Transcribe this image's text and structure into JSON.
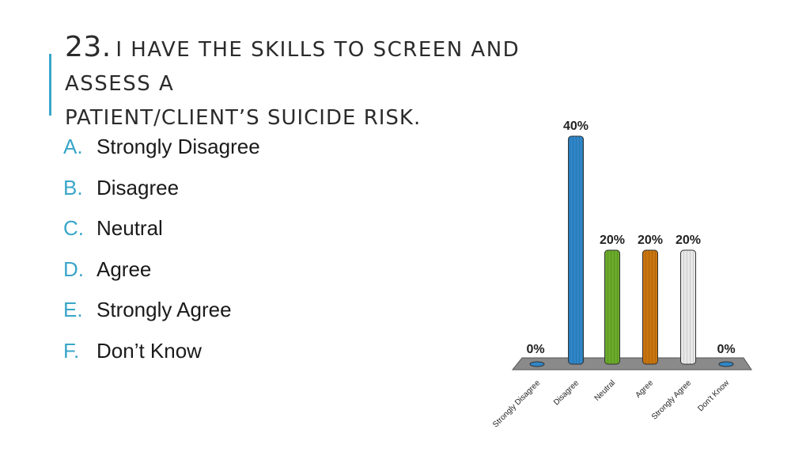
{
  "title": {
    "number": "23.",
    "line1": "I have the skills to screen and assess a",
    "line2": "patient/client’s suicide risk."
  },
  "options": [
    {
      "letter": "A.",
      "label": "Strongly Disagree"
    },
    {
      "letter": "B.",
      "label": "Disagree"
    },
    {
      "letter": "C.",
      "label": "Neutral"
    },
    {
      "letter": "D.",
      "label": "Agree"
    },
    {
      "letter": "E.",
      "label": "Strongly Agree"
    },
    {
      "letter": "F.",
      "label": "Don’t Know"
    }
  ],
  "chart_data": {
    "type": "bar",
    "categories": [
      "Strongly Disagree",
      "Disagree",
      "Neutral",
      "Agree",
      "Strongly Agree",
      "Don't Know"
    ],
    "values": [
      0,
      40,
      20,
      20,
      20,
      0
    ],
    "data_labels": [
      "0%",
      "40%",
      "20%",
      "20%",
      "20%",
      "0%"
    ],
    "colors": [
      "#2f86c8",
      "#2f86c8",
      "#6aaa2a",
      "#c9740f",
      "#e8e8e8",
      "#2f86c8"
    ],
    "ylim": [
      0,
      40
    ],
    "grid": false,
    "legend": "none"
  }
}
